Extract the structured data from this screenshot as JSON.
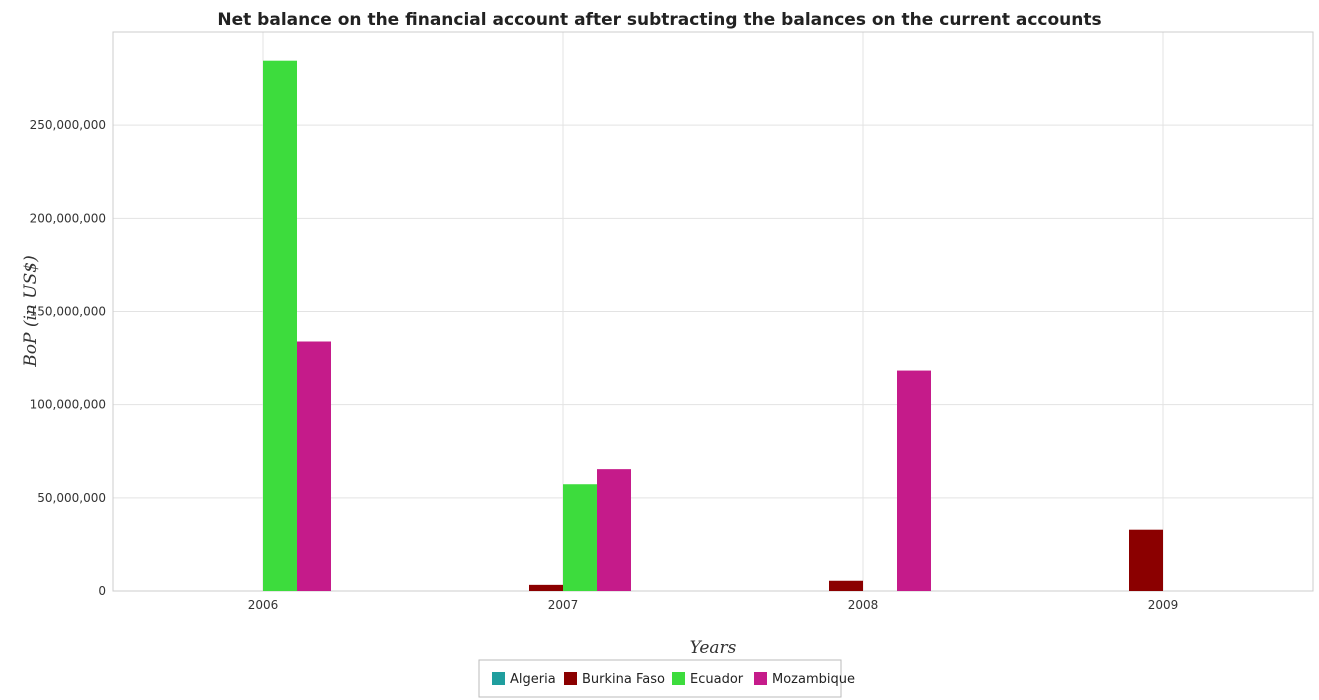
{
  "chart_data": {
    "type": "bar",
    "title": "Net balance on the financial account after subtracting the balances on the current accounts",
    "xlabel": "Years",
    "ylabel": "BoP (in US$)",
    "categories": [
      "2006",
      "2007",
      "2008",
      "2009"
    ],
    "series": [
      {
        "name": "Algeria",
        "color": "#1f9e9e",
        "values": [
          0,
          0,
          0,
          0
        ]
      },
      {
        "name": "Burkina Faso",
        "color": "#8b0000",
        "values": [
          0,
          3300000,
          5500000,
          32900000
        ]
      },
      {
        "name": "Ecuador",
        "color": "#3ddc3d",
        "values": [
          284600000,
          57300000,
          0,
          0
        ]
      },
      {
        "name": "Mozambique",
        "color": "#c51b8a",
        "values": [
          133900000,
          65400000,
          118300000,
          0
        ]
      }
    ],
    "ylim": [
      0,
      300000000
    ],
    "yticks": [
      "0",
      "50,000,000",
      "100,000,000",
      "150,000,000",
      "200,000,000",
      "250,000,000"
    ],
    "ytick_values": [
      0,
      50000000,
      100000000,
      150000000,
      200000000,
      250000000
    ],
    "grid": true,
    "legend_position": "bottom-center"
  }
}
